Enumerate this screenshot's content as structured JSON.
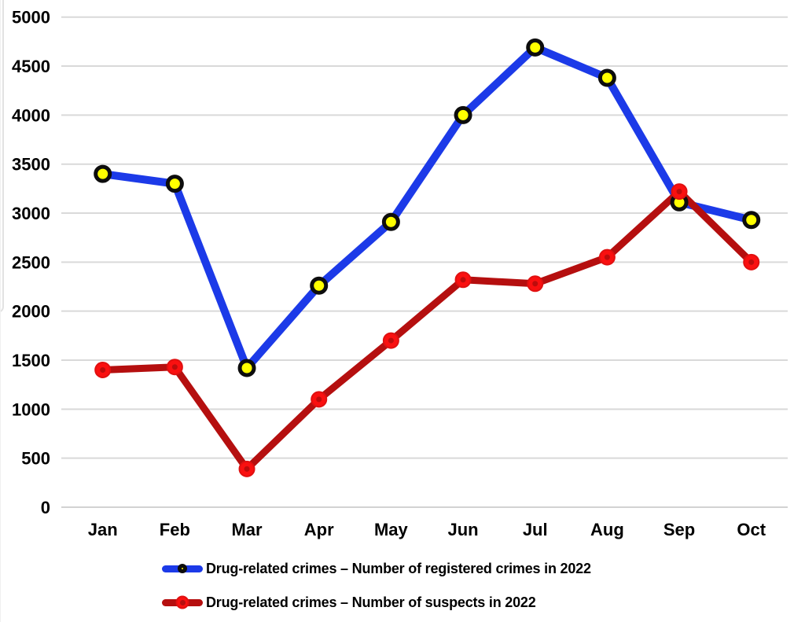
{
  "chart_data": {
    "type": "line",
    "title": "",
    "xlabel": "",
    "ylabel": "",
    "categories": [
      "Jan",
      "Feb",
      "Mar",
      "Apr",
      "May",
      "Jun",
      "Jul",
      "Aug",
      "Sep",
      "Oct"
    ],
    "series": [
      {
        "name": "Drug-related crimes – Number of registered crimes in 2022",
        "values": [
          3400,
          3300,
          1420,
          2260,
          2910,
          4000,
          4690,
          4380,
          3110,
          2930
        ],
        "line_color": "#1c3ae8",
        "line_width": 10,
        "marker": {
          "r": 9,
          "fill": "#ffff00",
          "ring": "#0d0d0d",
          "ring_width": 5,
          "center_dot": null
        }
      },
      {
        "name": "Drug-related crimes – Number of suspects in 2022",
        "values": [
          1400,
          1430,
          390,
          1100,
          1700,
          2320,
          2280,
          2550,
          3220,
          2500
        ],
        "line_color": "#b50f0f",
        "line_width": 9,
        "marker": {
          "r": 9.5,
          "fill": "#fa1010",
          "ring": "#e01010",
          "ring_width": 2,
          "center_dot": "#bd0c0c"
        }
      }
    ],
    "ylim": [
      0,
      5000
    ],
    "ytick_step": 500,
    "yticks": [
      0,
      500,
      1000,
      1500,
      2000,
      2500,
      3000,
      3500,
      4000,
      4500,
      5000
    ],
    "grid": true,
    "gridline_color": "#d9d9d9",
    "axis_line_color": "#d2d2d2",
    "legend_position": "bottom"
  }
}
